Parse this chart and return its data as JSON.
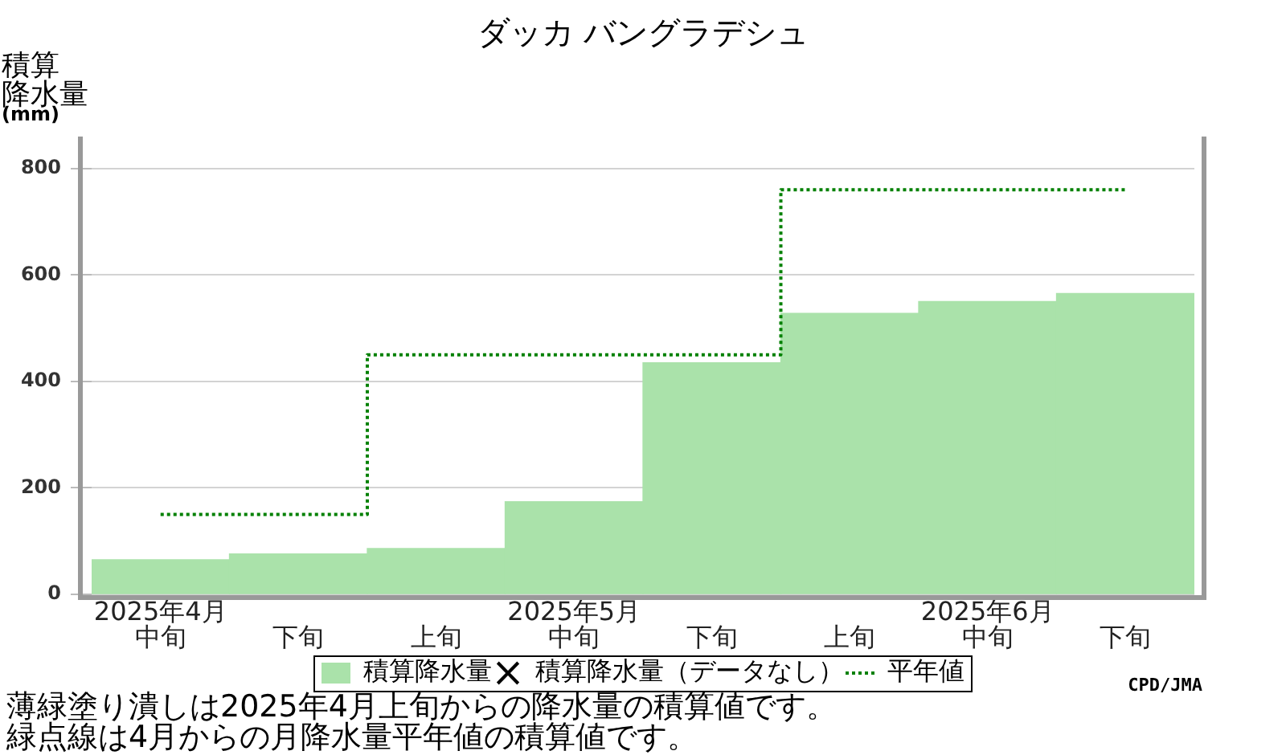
{
  "chart_data": {
    "type": "bar",
    "title": "ダッカ バングラデシュ",
    "ylabel": "積算降水量(mm)",
    "categories": [
      "2025年4月中旬",
      "下旬",
      "上旬",
      "2025年5月中旬",
      "下旬",
      "上旬",
      "2025年6月中旬",
      "下旬"
    ],
    "series": [
      {
        "name": "積算降水量",
        "color": "#aae2aa",
        "values": [
          65,
          76,
          86,
          174,
          435,
          528,
          550,
          565
        ]
      },
      {
        "name": "積算降水量（データなし）",
        "type": "scatter",
        "color": "#000000",
        "marker": "cross",
        "values": [
          null,
          null,
          null,
          null,
          null,
          null,
          null,
          null
        ]
      },
      {
        "name": "平年値",
        "type": "step",
        "color": "#008000",
        "line_style": "dotted",
        "values": [
          150,
          150,
          450,
          450,
          450,
          760,
          760,
          760
        ]
      }
    ],
    "ylim": [
      0,
      860
    ],
    "yticks": [
      0,
      200,
      400,
      600,
      800
    ],
    "grid": "y",
    "legend": "bottom",
    "annotations": [
      "薄緑塗り潰しは2025年4月上旬からの降水量の積算値です。",
      "緑点線は4月からの月降水量平年値の積算値です。",
      "CPD/JMA"
    ]
  }
}
